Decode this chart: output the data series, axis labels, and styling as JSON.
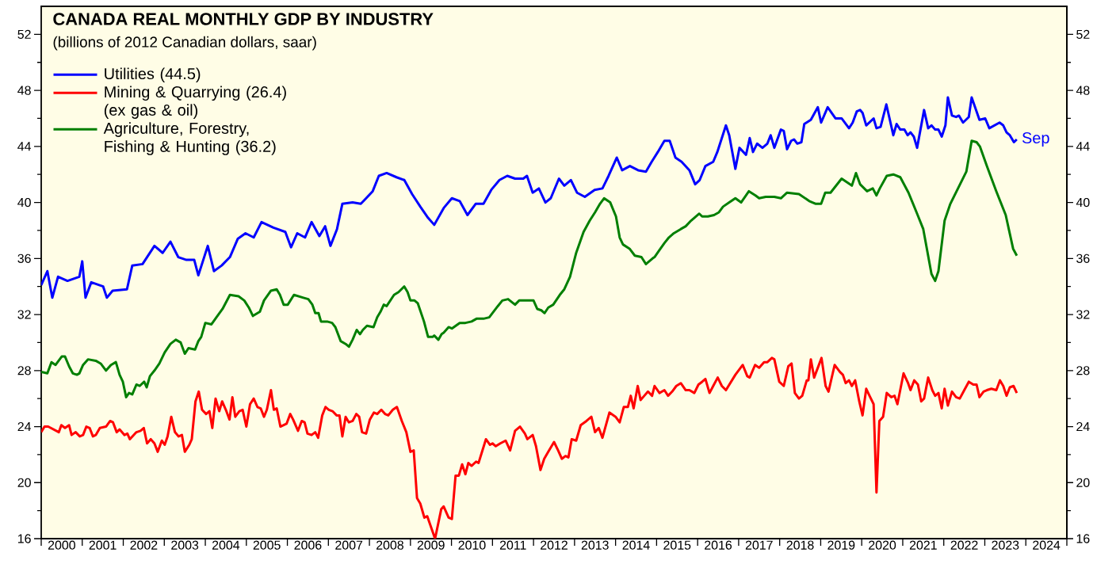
{
  "chart_data": {
    "type": "line",
    "title": "CANADA REAL MONTHLY GDP BY INDUSTRY",
    "subtitle": "(billions of 2012 Canadian dollars, saar)",
    "series": [
      {
        "name": "Utilities (44.5)",
        "color": "#0000ff",
        "x": [
          2000.0,
          2000.15,
          2000.27,
          2000.41,
          2000.64,
          2000.93,
          2001.0,
          2001.08,
          2001.22,
          2001.51,
          2001.6,
          2001.74,
          2002.09,
          2002.22,
          2002.47,
          2002.76,
          2002.96,
          2003.15,
          2003.34,
          2003.54,
          2003.73,
          2003.83,
          2004.06,
          2004.21,
          2004.4,
          2004.6,
          2004.79,
          2004.98,
          2005.18,
          2005.37,
          2005.66,
          2005.95,
          2006.09,
          2006.24,
          2006.43,
          2006.59,
          2006.78,
          2006.92,
          2007.05,
          2007.21,
          2007.34,
          2007.59,
          2007.79,
          2008.08,
          2008.23,
          2008.42,
          2008.66,
          2008.85,
          2009.04,
          2009.24,
          2009.43,
          2009.58,
          2009.81,
          2010.01,
          2010.2,
          2010.39,
          2010.59,
          2010.78,
          2010.97,
          2011.17,
          2011.36,
          2011.55,
          2011.75,
          2011.84,
          2011.98,
          2012.13,
          2012.29,
          2012.42,
          2012.62,
          2012.75,
          2012.91,
          2013.06,
          2013.25,
          2013.49,
          2013.68,
          2013.83,
          2014.03,
          2014.16,
          2014.35,
          2014.55,
          2014.74,
          2014.88,
          2015.03,
          2015.19,
          2015.32,
          2015.46,
          2015.61,
          2015.8,
          2015.94,
          2016.05,
          2016.19,
          2016.38,
          2016.48,
          2016.69,
          2016.77,
          2016.92,
          2017.02,
          2017.18,
          2017.27,
          2017.35,
          2017.45,
          2017.58,
          2017.7,
          2017.78,
          2017.87,
          2018.03,
          2018.1,
          2018.18,
          2018.28,
          2018.35,
          2018.43,
          2018.53,
          2018.6,
          2018.76,
          2018.93,
          2019.01,
          2019.17,
          2019.36,
          2019.51,
          2019.69,
          2019.78,
          2019.88,
          2019.96,
          2020.02,
          2020.11,
          2020.29,
          2020.36,
          2020.46,
          2020.6,
          2020.77,
          2020.85,
          2020.94,
          2021.04,
          2021.12,
          2021.19,
          2021.27,
          2021.35,
          2021.52,
          2021.62,
          2021.7,
          2021.79,
          2021.87,
          2021.95,
          2022.04,
          2022.1,
          2022.2,
          2022.3,
          2022.37,
          2022.47,
          2022.61,
          2022.68,
          2022.87,
          2023.01,
          2023.11,
          2023.36,
          2023.45,
          2023.53,
          2023.61,
          2023.71,
          2023.78
        ],
        "values": [
          34.1,
          35.1,
          33.2,
          34.7,
          34.4,
          34.7,
          35.8,
          33.2,
          34.3,
          34.0,
          33.2,
          33.7,
          33.8,
          35.5,
          35.6,
          36.9,
          36.4,
          37.2,
          36.1,
          35.9,
          35.9,
          34.8,
          36.9,
          35.1,
          35.5,
          36.1,
          37.4,
          37.8,
          37.5,
          38.6,
          38.2,
          37.9,
          36.8,
          37.8,
          37.5,
          38.6,
          37.6,
          38.3,
          36.9,
          38.1,
          39.9,
          40.0,
          39.9,
          40.8,
          41.9,
          42.1,
          41.8,
          41.6,
          40.6,
          39.7,
          38.9,
          38.4,
          39.6,
          40.3,
          40.1,
          39.1,
          39.9,
          39.9,
          40.9,
          41.6,
          41.9,
          41.7,
          41.7,
          41.9,
          40.7,
          41.0,
          40.0,
          40.3,
          41.7,
          41.2,
          41.6,
          40.7,
          40.4,
          40.9,
          41.0,
          41.9,
          43.2,
          42.3,
          42.6,
          42.3,
          42.2,
          42.9,
          43.6,
          44.4,
          44.4,
          43.2,
          42.9,
          42.3,
          41.3,
          41.6,
          42.6,
          42.9,
          43.6,
          45.5,
          44.8,
          42.4,
          43.9,
          43.4,
          44.6,
          43.6,
          44.2,
          43.9,
          44.2,
          44.8,
          43.9,
          45.2,
          45.1,
          43.8,
          44.4,
          44.5,
          44.2,
          44.3,
          45.6,
          45.9,
          46.8,
          45.7,
          46.8,
          46.0,
          46.0,
          45.3,
          45.7,
          46.5,
          46.6,
          46.4,
          45.5,
          46.0,
          45.3,
          45.4,
          47.0,
          44.8,
          45.6,
          45.2,
          45.2,
          44.8,
          45.0,
          44.7,
          43.9,
          46.6,
          45.3,
          45.5,
          45.2,
          45.2,
          44.7,
          45.5,
          47.5,
          46.2,
          46.1,
          46.2,
          45.7,
          46.1,
          47.5,
          45.9,
          46.0,
          45.3,
          45.7,
          45.5,
          45.0,
          44.8,
          44.3,
          44.5
        ]
      },
      {
        "name": "Mining & Quarrying (26.4) (ex gas & oil)",
        "color": "#ff0000",
        "x": [
          2000.0,
          2000.08,
          2000.17,
          2000.43,
          2000.49,
          2000.58,
          2000.68,
          2000.74,
          2000.84,
          2000.94,
          2001.02,
          2001.1,
          2001.18,
          2001.26,
          2001.33,
          2001.43,
          2001.58,
          2001.68,
          2001.75,
          2001.84,
          2001.91,
          2002.03,
          2002.1,
          2002.16,
          2002.32,
          2002.42,
          2002.5,
          2002.58,
          2002.67,
          2002.76,
          2002.84,
          2002.94,
          2003.01,
          2003.08,
          2003.17,
          2003.26,
          2003.35,
          2003.43,
          2003.5,
          2003.61,
          2003.67,
          2003.76,
          2003.84,
          2003.92,
          2004.02,
          2004.1,
          2004.17,
          2004.25,
          2004.34,
          2004.41,
          2004.5,
          2004.59,
          2004.66,
          2004.73,
          2004.83,
          2004.91,
          2005.0,
          2005.09,
          2005.18,
          2005.27,
          2005.35,
          2005.43,
          2005.5,
          2005.6,
          2005.67,
          2005.74,
          2005.83,
          2005.98,
          2006.07,
          2006.14,
          2006.26,
          2006.35,
          2006.42,
          2006.49,
          2006.59,
          2006.68,
          2006.75,
          2006.85,
          2006.93,
          2007.01,
          2007.1,
          2007.2,
          2007.27,
          2007.34,
          2007.42,
          2007.5,
          2007.59,
          2007.68,
          2007.75,
          2007.82,
          2007.92,
          2008.01,
          2008.11,
          2008.19,
          2008.29,
          2008.38,
          2008.46,
          2008.57,
          2008.67,
          2008.79,
          2008.9,
          2009.0,
          2009.08,
          2009.16,
          2009.24,
          2009.34,
          2009.41,
          2009.6,
          2009.75,
          2009.81,
          2009.93,
          2010.01,
          2010.1,
          2010.18,
          2010.26,
          2010.34,
          2010.41,
          2010.49,
          2010.6,
          2010.66,
          2010.84,
          2010.94,
          2011.0,
          2011.08,
          2011.19,
          2011.32,
          2011.43,
          2011.55,
          2011.67,
          2011.79,
          2011.85,
          2011.98,
          2012.06,
          2012.17,
          2012.26,
          2012.36,
          2012.5,
          2012.6,
          2012.69,
          2012.78,
          2012.85,
          2012.93,
          2013.04,
          2013.15,
          2013.29,
          2013.41,
          2013.5,
          2013.59,
          2013.68,
          2013.85,
          2014.0,
          2014.1,
          2014.2,
          2014.3,
          2014.37,
          2014.44,
          2014.54,
          2014.61,
          2014.7,
          2014.79,
          2014.89,
          2014.95,
          2015.07,
          2015.19,
          2015.28,
          2015.38,
          2015.48,
          2015.59,
          2015.71,
          2015.8,
          2015.92,
          2016.02,
          2016.11,
          2016.19,
          2016.29,
          2016.38,
          2016.49,
          2016.59,
          2016.69,
          2016.92,
          2017.1,
          2017.21,
          2017.27,
          2017.4,
          2017.5,
          2017.62,
          2017.7,
          2017.81,
          2017.87,
          2017.99,
          2018.1,
          2018.21,
          2018.29,
          2018.37,
          2018.47,
          2018.55,
          2018.66,
          2018.7,
          2018.76,
          2018.84,
          2019.02,
          2019.12,
          2019.19,
          2019.34,
          2019.47,
          2019.54,
          2019.61,
          2019.69,
          2019.76,
          2019.84,
          2019.94,
          2020.02,
          2020.11,
          2020.19,
          2020.29,
          2020.36,
          2020.43,
          2020.52,
          2020.61,
          2020.72,
          2020.8,
          2020.87,
          2021.02,
          2021.13,
          2021.19,
          2021.28,
          2021.37,
          2021.45,
          2021.52,
          2021.62,
          2021.72,
          2021.79,
          2021.87,
          2021.95,
          2022.02,
          2022.1,
          2022.2,
          2022.3,
          2022.39,
          2022.5,
          2022.61,
          2022.72,
          2022.8,
          2022.87,
          2022.97,
          2023.05,
          2023.16,
          2023.28,
          2023.37,
          2023.45,
          2023.53,
          2023.61,
          2023.7,
          2023.78
        ],
        "values": [
          23.6,
          24.0,
          24.0,
          23.6,
          24.1,
          23.9,
          24.1,
          23.4,
          23.6,
          23.3,
          23.4,
          24.0,
          23.9,
          23.3,
          23.4,
          23.9,
          24.0,
          24.4,
          24.3,
          23.6,
          23.8,
          23.4,
          23.5,
          23.1,
          23.6,
          23.7,
          23.9,
          22.8,
          23.1,
          22.8,
          22.2,
          23.0,
          22.7,
          23.3,
          24.7,
          23.6,
          23.3,
          23.4,
          22.2,
          22.7,
          23.1,
          25.8,
          26.5,
          25.2,
          24.9,
          25.1,
          23.9,
          26.0,
          25.1,
          25.8,
          25.2,
          24.5,
          26.1,
          24.7,
          25.1,
          25.2,
          24.0,
          25.6,
          26.0,
          25.4,
          25.3,
          24.7,
          25.2,
          26.6,
          25.2,
          25.3,
          24.0,
          24.2,
          24.9,
          24.5,
          23.7,
          24.4,
          24.3,
          23.5,
          23.4,
          23.6,
          23.2,
          24.8,
          25.4,
          25.2,
          25.1,
          24.8,
          24.8,
          23.3,
          24.7,
          24.3,
          24.4,
          24.9,
          24.7,
          23.6,
          23.5,
          24.5,
          25.0,
          24.9,
          25.2,
          24.9,
          24.8,
          25.2,
          25.4,
          24.4,
          23.6,
          22.2,
          22.3,
          18.9,
          18.5,
          17.5,
          17.6,
          16.0,
          18.1,
          18.3,
          17.5,
          17.4,
          20.5,
          20.5,
          21.3,
          20.6,
          21.4,
          21.2,
          21.5,
          21.4,
          23.1,
          22.7,
          22.8,
          22.6,
          22.8,
          23.0,
          22.3,
          23.7,
          24.0,
          23.5,
          23.1,
          23.4,
          22.6,
          20.9,
          21.7,
          22.2,
          22.9,
          22.3,
          21.7,
          21.9,
          21.8,
          23.1,
          23.0,
          24.1,
          24.4,
          24.7,
          23.6,
          23.9,
          23.2,
          25.0,
          24.7,
          24.3,
          25.4,
          25.4,
          26.2,
          25.3,
          26.9,
          25.9,
          26.2,
          26.5,
          26.2,
          26.9,
          26.4,
          26.6,
          26.2,
          26.5,
          26.9,
          27.1,
          26.6,
          26.6,
          26.4,
          27.0,
          27.2,
          27.4,
          26.4,
          26.9,
          27.5,
          26.9,
          26.6,
          27.7,
          28.4,
          27.6,
          27.5,
          28.4,
          28.2,
          28.6,
          28.6,
          28.9,
          28.8,
          27.2,
          26.9,
          28.3,
          28.5,
          26.4,
          26.0,
          26.2,
          27.3,
          27.3,
          28.8,
          27.5,
          28.9,
          26.9,
          26.5,
          28.4,
          27.9,
          27.7,
          27.1,
          27.3,
          26.9,
          27.3,
          25.8,
          24.8,
          26.7,
          26.2,
          25.6,
          19.3,
          24.4,
          24.7,
          26.4,
          26.1,
          26.2,
          25.6,
          27.8,
          27.1,
          26.6,
          27.3,
          27.0,
          25.8,
          26.0,
          27.5,
          26.6,
          26.2,
          26.4,
          25.3,
          26.7,
          25.5,
          26.5,
          26.1,
          26.0,
          26.6,
          27.2,
          27.0,
          27.0,
          26.1,
          26.5,
          26.6,
          26.7,
          26.6,
          27.3,
          26.9,
          26.2,
          26.8,
          26.9,
          26.4
        ]
      },
      {
        "name": "Agriculture, Forestry, Fishing & Hunting (36.2)",
        "color": "#007f00",
        "x": [
          2000.0,
          2000.15,
          2000.25,
          2000.35,
          2000.5,
          2000.58,
          2000.68,
          2000.77,
          2000.87,
          2000.93,
          2001.02,
          2001.14,
          2001.33,
          2001.45,
          2001.58,
          2001.7,
          2001.82,
          2001.91,
          2001.99,
          2002.07,
          2002.14,
          2002.22,
          2002.32,
          2002.4,
          2002.51,
          2002.57,
          2002.65,
          2002.76,
          2002.88,
          2003.01,
          2003.15,
          2003.28,
          2003.4,
          2003.5,
          2003.59,
          2003.75,
          2003.83,
          2003.9,
          2004.0,
          2004.15,
          2004.27,
          2004.42,
          2004.6,
          2004.81,
          2004.95,
          2005.06,
          2005.16,
          2005.33,
          2005.43,
          2005.6,
          2005.74,
          2005.82,
          2005.91,
          2006.01,
          2006.16,
          2006.39,
          2006.51,
          2006.61,
          2006.68,
          2006.76,
          2006.82,
          2006.97,
          2007.09,
          2007.17,
          2007.3,
          2007.42,
          2007.5,
          2007.59,
          2007.69,
          2007.77,
          2007.84,
          2007.94,
          2008.1,
          2008.19,
          2008.27,
          2008.35,
          2008.42,
          2008.6,
          2008.71,
          2008.85,
          2008.93,
          2009.0,
          2009.1,
          2009.18,
          2009.33,
          2009.43,
          2009.54,
          2009.58,
          2009.68,
          2009.76,
          2009.81,
          2009.93,
          2010.01,
          2010.2,
          2010.34,
          2010.49,
          2010.61,
          2010.78,
          2010.92,
          2011.13,
          2011.24,
          2011.38,
          2011.55,
          2011.65,
          2011.9,
          2012.0,
          2012.09,
          2012.19,
          2012.27,
          2012.36,
          2012.48,
          2012.64,
          2012.75,
          2012.89,
          2013.04,
          2013.22,
          2013.37,
          2013.5,
          2013.62,
          2013.72,
          2013.87,
          2014.01,
          2014.1,
          2014.18,
          2014.34,
          2014.47,
          2014.63,
          2014.74,
          2014.9,
          2014.95,
          2015.07,
          2015.19,
          2015.3,
          2015.42,
          2015.59,
          2015.71,
          2015.84,
          2016.04,
          2016.11,
          2016.25,
          2016.4,
          2016.52,
          2016.62,
          2016.77,
          2016.92,
          2017.06,
          2017.25,
          2017.41,
          2017.5,
          2017.66,
          2017.87,
          2018.03,
          2018.18,
          2018.47,
          2018.72,
          2018.88,
          2019.01,
          2019.11,
          2019.24,
          2019.51,
          2019.76,
          2019.86,
          2019.96,
          2020.13,
          2020.27,
          2020.36,
          2020.44,
          2020.61,
          2020.77,
          2020.94,
          2021.14,
          2021.35,
          2021.5,
          2021.7,
          2021.79,
          2021.87,
          2022.02,
          2022.16,
          2022.55,
          2022.68,
          2022.8,
          2022.88,
          2023.05,
          2023.28,
          2023.51,
          2023.69,
          2023.78
        ],
        "values": [
          27.9,
          27.8,
          28.6,
          28.4,
          29.0,
          29.0,
          28.3,
          27.8,
          27.7,
          27.8,
          28.4,
          28.8,
          28.7,
          28.5,
          28.0,
          28.4,
          28.6,
          27.7,
          27.2,
          26.1,
          26.4,
          26.3,
          27.0,
          26.9,
          27.2,
          26.8,
          27.6,
          28.0,
          28.5,
          29.3,
          29.9,
          30.2,
          30.0,
          29.2,
          29.6,
          29.5,
          30.1,
          30.4,
          31.4,
          31.3,
          31.8,
          32.4,
          33.4,
          33.3,
          33.0,
          32.5,
          31.9,
          32.2,
          33.0,
          33.7,
          33.8,
          33.4,
          32.7,
          32.7,
          33.4,
          33.2,
          33.1,
          32.7,
          32.1,
          32.1,
          31.5,
          31.5,
          31.4,
          31.1,
          30.1,
          29.9,
          29.7,
          30.2,
          30.9,
          30.6,
          30.9,
          31.2,
          31.1,
          31.8,
          32.2,
          32.7,
          32.6,
          33.4,
          33.6,
          34.0,
          33.6,
          33.0,
          33.0,
          32.8,
          31.5,
          30.4,
          30.4,
          30.5,
          30.2,
          30.6,
          30.7,
          31.1,
          31.0,
          31.4,
          31.4,
          31.5,
          31.7,
          31.7,
          31.8,
          32.6,
          33.0,
          33.1,
          32.7,
          33.0,
          33.0,
          33.0,
          32.4,
          32.3,
          32.1,
          32.5,
          32.7,
          33.4,
          33.8,
          34.7,
          36.4,
          37.9,
          38.7,
          39.3,
          39.9,
          40.3,
          40.0,
          39.0,
          37.5,
          37.0,
          36.7,
          36.2,
          36.1,
          35.6,
          36.0,
          36.1,
          36.6,
          37.1,
          37.5,
          37.8,
          38.1,
          38.3,
          38.7,
          39.2,
          39.0,
          39.0,
          39.1,
          39.3,
          39.7,
          40.0,
          40.3,
          40.0,
          40.8,
          40.5,
          40.3,
          40.4,
          40.4,
          40.3,
          40.7,
          40.6,
          40.1,
          39.9,
          39.9,
          40.7,
          40.7,
          41.7,
          41.2,
          42.1,
          41.3,
          40.8,
          41.0,
          40.5,
          41.0,
          41.9,
          42.0,
          41.8,
          40.7,
          39.2,
          38.1,
          34.9,
          34.4,
          35.1,
          38.7,
          39.9,
          42.2,
          44.4,
          44.3,
          44.0,
          42.6,
          40.8,
          39.1,
          36.7,
          36.2
        ]
      }
    ],
    "xlim": [
      2000,
      2025
    ],
    "xticks": [
      {
        "value": 2000,
        "label": null
      },
      {
        "value": 2000.5,
        "label": "2000"
      },
      {
        "value": 2001,
        "label": null
      },
      {
        "value": 2001.5,
        "label": "2001"
      },
      {
        "value": 2002,
        "label": null
      },
      {
        "value": 2002.5,
        "label": "2002"
      },
      {
        "value": 2003,
        "label": null
      },
      {
        "value": 2003.5,
        "label": "2003"
      },
      {
        "value": 2004,
        "label": null
      },
      {
        "value": 2004.5,
        "label": "2004"
      },
      {
        "value": 2005,
        "label": null
      },
      {
        "value": 2005.5,
        "label": "2005"
      },
      {
        "value": 2006,
        "label": null
      },
      {
        "value": 2006.5,
        "label": "2006"
      },
      {
        "value": 2007,
        "label": null
      },
      {
        "value": 2007.5,
        "label": "2007"
      },
      {
        "value": 2008,
        "label": null
      },
      {
        "value": 2008.5,
        "label": "2008"
      },
      {
        "value": 2009,
        "label": null
      },
      {
        "value": 2009.5,
        "label": "2009"
      },
      {
        "value": 2010,
        "label": null
      },
      {
        "value": 2010.5,
        "label": "2010"
      },
      {
        "value": 2011,
        "label": null
      },
      {
        "value": 2011.5,
        "label": "2011"
      },
      {
        "value": 2012,
        "label": null
      },
      {
        "value": 2012.5,
        "label": "2012"
      },
      {
        "value": 2013,
        "label": null
      },
      {
        "value": 2013.5,
        "label": "2013"
      },
      {
        "value": 2014,
        "label": null
      },
      {
        "value": 2014.5,
        "label": "2014"
      },
      {
        "value": 2015,
        "label": null
      },
      {
        "value": 2015.5,
        "label": "2015"
      },
      {
        "value": 2016,
        "label": null
      },
      {
        "value": 2016.5,
        "label": "2016"
      },
      {
        "value": 2017,
        "label": null
      },
      {
        "value": 2017.5,
        "label": "2017"
      },
      {
        "value": 2018,
        "label": null
      },
      {
        "value": 2018.5,
        "label": "2018"
      },
      {
        "value": 2019,
        "label": null
      },
      {
        "value": 2019.5,
        "label": "2019"
      },
      {
        "value": 2020,
        "label": null
      },
      {
        "value": 2020.5,
        "label": "2020"
      },
      {
        "value": 2021,
        "label": null
      },
      {
        "value": 2021.5,
        "label": "2021"
      },
      {
        "value": 2022,
        "label": null
      },
      {
        "value": 2022.5,
        "label": "2022"
      },
      {
        "value": 2023,
        "label": null
      },
      {
        "value": 2023.5,
        "label": "2023"
      },
      {
        "value": 2024,
        "label": null
      },
      {
        "value": 2024.5,
        "label": "2024"
      },
      {
        "value": 2025,
        "label": null
      }
    ],
    "ylim": [
      16,
      54
    ],
    "yticks": [
      16,
      {
        "value": 18,
        "label": null
      },
      20,
      {
        "value": 22,
        "label": null
      },
      24,
      {
        "value": 26,
        "label": null
      },
      28,
      {
        "value": 30,
        "label": null
      },
      32,
      {
        "value": 34,
        "label": null
      },
      36,
      {
        "value": 38,
        "label": null
      },
      40,
      {
        "value": 42,
        "label": null
      },
      44,
      {
        "value": 46,
        "label": null
      },
      48,
      {
        "value": 50,
        "label": null
      },
      52
    ],
    "y2lim": [
      16,
      54
    ],
    "y2ticks": [
      16,
      {
        "value": 18,
        "label": null
      },
      20,
      {
        "value": 22,
        "label": null
      },
      24,
      {
        "value": 26,
        "label": null
      },
      28,
      {
        "value": 30,
        "label": null
      },
      32,
      {
        "value": 34,
        "label": null
      },
      36,
      {
        "value": 38,
        "label": null
      },
      40,
      {
        "value": 42,
        "label": null
      },
      44,
      {
        "value": 46,
        "label": null
      },
      48,
      {
        "value": 50,
        "label": null
      },
      52
    ],
    "legend": "top left",
    "annotations": [
      {
        "text": "Sep",
        "x": 2023.78,
        "y": 44.5
      }
    ]
  }
}
